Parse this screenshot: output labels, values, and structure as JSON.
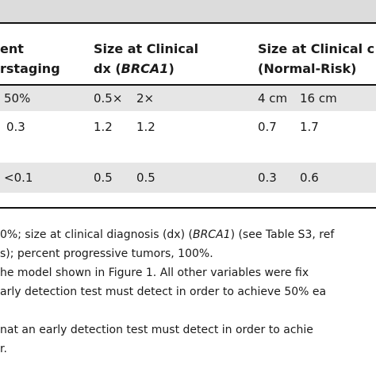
{
  "table": {
    "header": [
      [
        "ent",
        "rstaging"
      ],
      [
        "Size at Clinical",
        "dx (",
        "BRCA1",
        ")"
      ],
      [
        "Size at Clinical c",
        "(Normal-Risk)"
      ]
    ],
    "rows": [
      [
        "50%",
        "0.5×",
        "2×",
        "4 cm",
        "16 cm"
      ],
      [
        "0.3",
        "1.2",
        "1.2",
        "0.7",
        "1.7"
      ],
      [
        "<0.1",
        "0.5",
        "0.5",
        "0.3",
        "0.6"
      ]
    ]
  },
  "footnotes": [
    [
      "0%; size at clinical diagnosis (dx) (",
      "BRCA1",
      ") (see Table S3, ref"
    ],
    "s); percent progressive tumors, 100%.",
    "he model shown in Figure 1. All other variables were fix",
    "arly detection test must detect in order to achieve 50% ea",
    "nat an early detection test must detect in order to achie",
    "r."
  ]
}
